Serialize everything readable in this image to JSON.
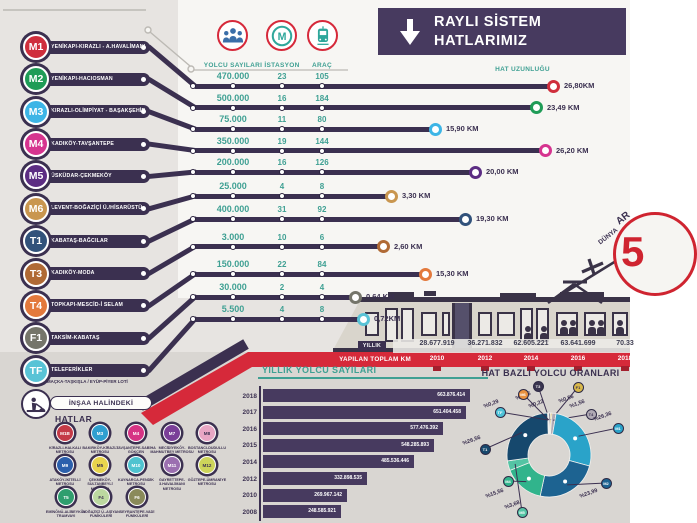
{
  "header": {
    "title_line1": "RAYLI SİSTEM",
    "title_line2": "HATLARIMIZ",
    "bg": "#473a5f"
  },
  "icons": {
    "passengers": "passengers-icon",
    "station": "metro-m-icon",
    "vehicle": "tram-icon",
    "arrow": "down-arrow-icon",
    "construction": "construction-icon"
  },
  "columns": {
    "yolcu": "YOLCU SAYILARI",
    "istasyon": "İSTASYON",
    "arac": "ARAÇ",
    "hat_uzunlugu": "HAT UZUNLUĞU"
  },
  "accent_colors": {
    "purple": "#3b3050",
    "red": "#d6293a",
    "teal": "#3fa093"
  },
  "lines": [
    {
      "code": "M1",
      "name": "YENİKAPI-KIRAZLI - A.HAVALİMANI",
      "color": "#cf2e3c",
      "yolcu": "470.000",
      "istasyon": "23",
      "arac": "105",
      "km": "26,80KM",
      "end_x": 550
    },
    {
      "code": "M2",
      "name": "YENİKAPI-HACIOSMAN",
      "color": "#1f9c57",
      "yolcu": "500.000",
      "istasyon": "16",
      "arac": "184",
      "km": "23,49 KM",
      "end_x": 533
    },
    {
      "code": "M3",
      "name": "KIRAZLI-OLİMPİYAT - BAŞAKŞEHİR",
      "color": "#3db5e6",
      "yolcu": "75.000",
      "istasyon": "11",
      "arac": "80",
      "km": "15,90 KM",
      "end_x": 432
    },
    {
      "code": "M4",
      "name": "KADIKÖY-TAVŞANTEPE",
      "color": "#d6348f",
      "yolcu": "350.000",
      "istasyon": "19",
      "arac": "144",
      "km": "26,20 KM",
      "end_x": 542
    },
    {
      "code": "M5",
      "name": "ÜSKÜDAR-ÇEKMEKÖY",
      "color": "#5c2d83",
      "yolcu": "200.000",
      "istasyon": "16",
      "arac": "126",
      "km": "20,00 KM",
      "end_x": 472
    },
    {
      "code": "M6",
      "name": "LEVENT-BOĞAZİÇİ Ü./HİSARÜSTÜ",
      "color": "#c9964f",
      "yolcu": "25.000",
      "istasyon": "4",
      "arac": "8",
      "km": "3,30 KM",
      "end_x": 388
    },
    {
      "code": "T1",
      "name": "KABATAŞ-BAĞCILAR",
      "color": "#32527b",
      "yolcu": "400.000",
      "istasyon": "31",
      "arac": "92",
      "km": "19,30 KM",
      "end_x": 462
    },
    {
      "code": "T3",
      "name": "KADIKÖY-MODA",
      "color": "#b06a35",
      "yolcu": "3.000",
      "istasyon": "10",
      "arac": "6",
      "km": "2,60 KM",
      "end_x": 380
    },
    {
      "code": "T4",
      "name": "TOPKAPI-MESCİD-İ SELAM",
      "color": "#e3793c",
      "yolcu": "150.000",
      "istasyon": "22",
      "arac": "84",
      "km": "15,30 KM",
      "end_x": 422
    },
    {
      "code": "F1",
      "name": "TAKSİM-KABATAŞ",
      "color": "#75756a",
      "yolcu": "30.000",
      "istasyon": "2",
      "arac": "4",
      "km": "0,64 KM",
      "end_x": 352
    },
    {
      "code": "TF",
      "name": "TELEFERİKLER",
      "subtitle": "MAÇKA-TAŞKIŞLA / EYÜP-PİYER LOTİ",
      "color": "#59c3d6",
      "yolcu": "5.500",
      "istasyon": "4",
      "arac": "8",
      "km": "0,72KM",
      "end_x": 360
    }
  ],
  "construction": {
    "title": "İNŞAA HALİNDEKİ",
    "subtitle": "HATLAR",
    "items": [
      {
        "code": "M1B",
        "name": "KİRAZLI-HALKALI METROSU",
        "color": "#c43a47",
        "text": "#ffffff"
      },
      {
        "code": "M3",
        "name": "BAKIRKÖY-KİRAZLI METROSU",
        "color": "#2f9fd0",
        "text": "#ffffff"
      },
      {
        "code": "M4",
        "name": "TAVŞANTEPE-SABİHA GÖKÇEN",
        "color": "#d63384",
        "text": "#ffffff"
      },
      {
        "code": "M7",
        "name": "MECİDİYEKÖY-MAHMUTBEY METROSU",
        "color": "#7a3f98",
        "text": "#ffffff"
      },
      {
        "code": "M8",
        "name": "BOSTANCI-DUDULLU METROSU",
        "color": "#e8a6c4",
        "text": "#3b3050"
      },
      {
        "code": "M9",
        "name": "ATAKÖY-İKİTELLİ METROSU",
        "color": "#2b5fac",
        "text": "#ffffff"
      },
      {
        "code": "M5",
        "name": "ÇEKMEKÖY-SULTANBEYLİ METROSU",
        "color": "#e8d44d",
        "text": "#3b3050"
      },
      {
        "code": "M10",
        "name": "KAYNARCA-PENDİK METROSU",
        "color": "#4fc3d0",
        "text": "#ffffff"
      },
      {
        "code": "M11",
        "name": "GAYRETTEPE-3.HAVALİMANI METROSU",
        "color": "#9b6fb0",
        "text": "#ffffff"
      },
      {
        "code": "M12",
        "name": "GÖZTEPE-ÜMRANİYE METROSU",
        "color": "#cdd45a",
        "text": "#3b3050"
      },
      {
        "code": "T5",
        "name": "EMİNÖNÜ-ALİBEYKÖY TRAMVAYI",
        "color": "#2f9e6e",
        "text": "#ffffff"
      },
      {
        "code": "F4",
        "name": "BOĞAZİÇİ Ü.-AŞİYAN FÜNİKÜLERİ",
        "color": "#bcd9a0",
        "text": "#3b3050"
      },
      {
        "code": "F6",
        "name": "SEYRANTEPE-VADİ FÜNİKÜLERİ",
        "color": "#8a8a5a",
        "text": "#ffffff"
      }
    ]
  },
  "band": {
    "annual_label": "YILLIK",
    "total_label": "YAPILAN TOPLAM KM",
    "entries": [
      {
        "year": "2010",
        "value": "28.677.919"
      },
      {
        "year": "2012",
        "value": "36.271.832"
      },
      {
        "year": "2014",
        "value": "62.605.221"
      },
      {
        "year": "2016",
        "value": "63.641.699"
      },
      {
        "year": "2018",
        "value": "70.33"
      }
    ]
  },
  "badge5": {
    "word_top": "AR",
    "word_arc": "DÜNYA",
    "number": "5"
  },
  "chart_data": [
    {
      "type": "bar",
      "title": "YILLIK YOLCU SAYILARI",
      "orientation": "horizontal",
      "categories": [
        "2018",
        "2017",
        "2016",
        "2015",
        "2014",
        "2012",
        "2010",
        "2008"
      ],
      "values": [
        663876414,
        651404458,
        577476392,
        548285893,
        485536446,
        332898535,
        269967142,
        248585921
      ],
      "value_labels": [
        "663.876.414",
        "651.404.458",
        "577.476.392",
        "548.285.893",
        "485.536.446",
        "332.898.535",
        "269.967.142",
        "248.585.921"
      ],
      "bar_color": "#473a5f",
      "axis_color": "#3b3050",
      "xlim": [
        0,
        663876414
      ],
      "grid": false
    },
    {
      "type": "pie",
      "variant": "donut",
      "title": "HAT BAZLI YOLCU ORANLARI",
      "legend_position": "callouts",
      "slices": [
        {
          "code": "T3",
          "pct": 0.56,
          "label": "%0,56",
          "color": "#3a3550",
          "text": "#ffffff",
          "cx": 538,
          "cy": 386,
          "lx": 516,
          "ly": 396
        },
        {
          "code": "F1",
          "pct": 0.56,
          "label": "%0,56",
          "color": "#d8b84a",
          "text": "#3b3050",
          "cx": 578,
          "cy": 387,
          "lx": 559,
          "ly": 399
        },
        {
          "code": "T4",
          "pct": 1.56,
          "label": "%1,56",
          "color": "#b0aab4",
          "text": "#3b3050",
          "cx": 591,
          "cy": 414,
          "lx": 570,
          "ly": 404
        },
        {
          "code": "M1",
          "pct": 26.36,
          "label": "%26,36",
          "color": "#2aa3c9",
          "text": "#ffffff",
          "cx": 618,
          "cy": 428,
          "lx": 594,
          "ly": 417
        },
        {
          "code": "M2",
          "pct": 23.99,
          "label": "%23,99",
          "color": "#1d6391",
          "text": "#ffffff",
          "cx": 606,
          "cy": 483,
          "lx": 580,
          "ly": 494
        },
        {
          "code": "M4",
          "pct": 15.56,
          "label": "%15,56",
          "color": "#31b48c",
          "text": "#ffffff",
          "cx": 508,
          "cy": 481,
          "lx": 486,
          "ly": 494
        },
        {
          "code": "M5",
          "pct": 3.68,
          "label": "%3,68",
          "color": "#54c4a4",
          "text": "#ffffff",
          "cx": 522,
          "cy": 512,
          "lx": 505,
          "ly": 505
        },
        {
          "code": "T1",
          "pct": 26.56,
          "label": "%26,56",
          "color": "#16486d",
          "text": "#ffffff",
          "cx": 485,
          "cy": 449,
          "lx": 463,
          "ly": 441
        },
        {
          "code": "TF",
          "pct": 0.29,
          "label": "%0,29",
          "color": "#4ec3d8",
          "text": "#ffffff",
          "cx": 500,
          "cy": 412,
          "lx": 484,
          "ly": 404
        },
        {
          "code": "M6",
          "pct": 0.22,
          "label": "%0,22",
          "color": "#e8913f",
          "text": "#ffffff",
          "cx": 523,
          "cy": 394,
          "lx": 529,
          "ly": 404
        }
      ]
    }
  ]
}
